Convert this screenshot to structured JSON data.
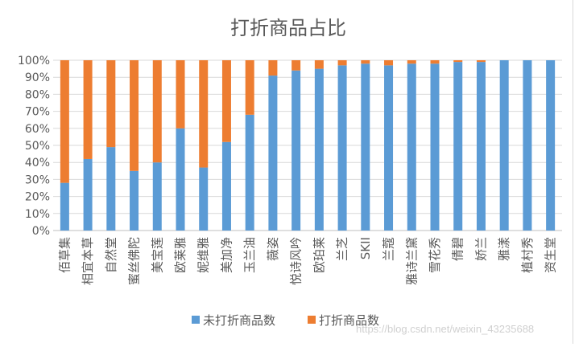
{
  "chart_data": {
    "type": "bar",
    "stacked": "percent",
    "title": "打折商品占比",
    "xlabel": "",
    "ylabel": "",
    "ylim": [
      0,
      100
    ],
    "yticks": [
      "0%",
      "10%",
      "20%",
      "30%",
      "40%",
      "50%",
      "60%",
      "70%",
      "80%",
      "90%",
      "100%"
    ],
    "categories": [
      "佰草集",
      "相宜本草",
      "自然堂",
      "蜜丝佛陀",
      "美宝莲",
      "欧莱雅",
      "妮维雅",
      "美加净",
      "玉兰油",
      "薇姿",
      "悦诗风吟",
      "欧珀莱",
      "兰芝",
      "SKII",
      "兰蔻",
      "雅诗兰黛",
      "雪花秀",
      "倩碧",
      "娇兰",
      "雅漾",
      "植村秀",
      "资生堂"
    ],
    "series": [
      {
        "name": "未打折商品数",
        "color": "#5b9bd5",
        "values": [
          28,
          42,
          49,
          35,
          40,
          60,
          37,
          52,
          68,
          91,
          94,
          95,
          97,
          98,
          97,
          98,
          98,
          99,
          99,
          100,
          100,
          100
        ]
      },
      {
        "name": "打折商品数",
        "color": "#ed7d31",
        "values": [
          72,
          58,
          51,
          65,
          60,
          40,
          63,
          48,
          32,
          9,
          6,
          5,
          3,
          2,
          3,
          2,
          2,
          1,
          1,
          0,
          0,
          0
        ]
      }
    ],
    "legend": "bottom"
  },
  "watermark": "https://blog.csdn.net/weixin_43235688"
}
